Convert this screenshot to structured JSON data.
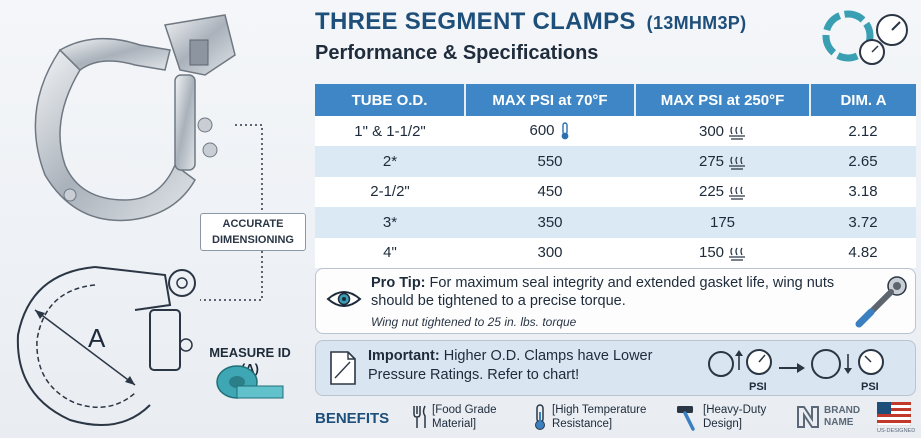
{
  "header": {
    "title": "THREE SEGMENT CLAMPS",
    "model_code": "(13MHM3P)",
    "subtitle": "Performance & Specifications"
  },
  "left_panel": {
    "dimension_label_line1": "ACCURATE",
    "dimension_label_line2": "DIMENSIONING",
    "dim_letter": "A",
    "measure_line1": "MEASURE ID",
    "measure_line2": "(A)"
  },
  "table": {
    "headers": [
      "TUBE O.D.",
      "MAX PSI at 70°F",
      "MAX PSI at 250°F",
      "DIM. A"
    ],
    "rows": [
      {
        "tube": "1\" & 1-1/2\"",
        "psi70": "600",
        "psi250": "300",
        "dim": "2.12"
      },
      {
        "tube": "2*",
        "psi70": "550",
        "psi250": "275",
        "dim": "2.65"
      },
      {
        "tube": "2-1/2\"",
        "psi70": "450",
        "psi250": "225",
        "dim": "3.18"
      },
      {
        "tube": "3*",
        "psi70": "350",
        "psi250": "175",
        "dim": "3.72"
      },
      {
        "tube": "4\"",
        "psi70": "300",
        "psi250": "150",
        "dim": "4.82"
      }
    ]
  },
  "pro_tip": {
    "label": "Pro Tip:",
    "text": " For maximum seal integrity and extended gasket life, wing nuts should be tightened to a precise torque.",
    "sub": "Wing nut tightened to 25 in. lbs. torque"
  },
  "important": {
    "label": "Important:",
    "text": " Higher O.D. Clamps have Lower Pressure Ratings. Refer to chart!",
    "psi_label_1": "PSI",
    "psi_label_2": "PSI"
  },
  "benefits": {
    "label": "BENEFITS",
    "items": [
      {
        "line1": "Food Grade",
        "line2": "Material]"
      },
      {
        "line1": "High Temperature",
        "line2": "Resistance]"
      },
      {
        "line1": "Heavy-Duty",
        "line2": "Design]"
      }
    ],
    "brand_line1": "BRAND",
    "brand_line2": "NAME",
    "flag_text": "US-DESIGNED"
  },
  "colors": {
    "title": "#1d4f7a",
    "table_header": "#3e86c6",
    "row_alt": "#dbe9f5",
    "important_bg": "#d9e5f1"
  }
}
